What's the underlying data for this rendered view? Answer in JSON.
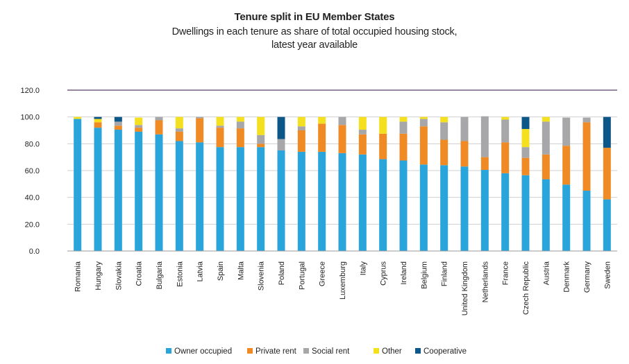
{
  "chart_data": {
    "type": "bar",
    "stacked": true,
    "title": "Tenure split in EU Member States",
    "subtitle_line1": "Dwellings in each tenure as share of total occupied housing stock,",
    "subtitle_line2": "latest year available",
    "ylim": [
      0,
      120
    ],
    "yticks": [
      "0.0",
      "20.0",
      "40.0",
      "60.0",
      "80.0",
      "100.0",
      "120.0"
    ],
    "legend_position": "bottom",
    "categories": [
      "Romania",
      "Hungary",
      "Slovakia",
      "Croatia",
      "Bulgaria",
      "Estonia",
      "Latvia",
      "Spain",
      "Malta",
      "Slovenia",
      "Poland",
      "Portugal",
      "Greece",
      "Luxemburg",
      "Italy",
      "Cyprus",
      "Ireland",
      "Belgium",
      "Finland",
      "United Kingdom",
      "Netherlands",
      "France",
      "Czech Republic",
      "Austria",
      "Denmark",
      "Germany",
      "Sweden"
    ],
    "series": [
      {
        "name": "Owner occupied",
        "color": "#2aa5dc",
        "values": [
          98.5,
          92,
          90.5,
          89,
          87,
          82,
          81,
          77.5,
          77.5,
          77.5,
          75,
          74,
          74,
          73,
          72,
          68.5,
          67.5,
          64.5,
          64,
          63,
          60.5,
          58,
          56.5,
          53.5,
          49.5,
          45,
          38.5
        ]
      },
      {
        "name": "Private rent",
        "color": "#f08a24",
        "values": [
          0,
          4,
          3,
          3,
          10.5,
          7,
          18,
          14.5,
          14,
          2.5,
          0,
          16,
          21,
          21,
          15,
          19,
          20,
          28.5,
          19,
          19,
          9.5,
          23,
          13,
          18.5,
          29,
          51,
          38.5
        ]
      },
      {
        "name": "Social rent",
        "color": "#a7a7a9",
        "values": [
          0,
          0,
          3,
          2,
          2.5,
          2.5,
          1,
          1.5,
          5,
          6.5,
          8.5,
          3,
          0,
          6,
          3.5,
          0,
          9,
          5.5,
          13,
          18,
          30.5,
          17,
          8,
          24.5,
          21,
          3.5,
          0
        ]
      },
      {
        "name": "Other",
        "color": "#f4e01f",
        "values": [
          1.5,
          2.5,
          0,
          5.5,
          0,
          8.5,
          0,
          6.5,
          3.5,
          13.5,
          0,
          7,
          5,
          0,
          9.5,
          12.5,
          3.5,
          1.5,
          4,
          0,
          0,
          2,
          13.5,
          3.5,
          0,
          0,
          0
        ]
      },
      {
        "name": "Cooperative",
        "color": "#0c5788",
        "values": [
          0,
          1.5,
          3.5,
          0,
          0,
          0,
          0,
          0,
          0,
          0,
          16.5,
          0,
          0,
          0,
          0,
          0,
          0,
          0,
          0,
          0,
          0,
          0,
          9,
          0,
          0,
          0,
          23
        ]
      }
    ]
  }
}
